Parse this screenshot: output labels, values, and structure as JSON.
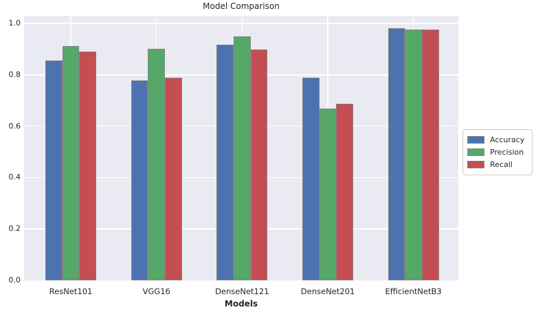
{
  "chart_data": {
    "type": "bar",
    "title": "Model Comparison",
    "xlabel": "Models",
    "ylabel": "",
    "categories": [
      "ResNet101",
      "VGG16",
      "DenseNet121",
      "DenseNet201",
      "EfficientNetB3"
    ],
    "series": [
      {
        "name": "Accuracy",
        "color": "#4c72b0",
        "values": [
          0.855,
          0.777,
          0.917,
          0.788,
          0.982
        ]
      },
      {
        "name": "Precision",
        "color": "#55a868",
        "values": [
          0.911,
          0.902,
          0.948,
          0.668,
          0.977
        ]
      },
      {
        "name": "Recall",
        "color": "#c44e52",
        "values": [
          0.89,
          0.788,
          0.899,
          0.686,
          0.977
        ]
      }
    ],
    "ylim": [
      0,
      1.0
    ],
    "yticks": [
      "0.0",
      "0.2",
      "0.4",
      "0.6",
      "0.8",
      "1.0"
    ],
    "grid": true,
    "legend_position": "center-right-outside",
    "plot_background": "#eaeaf2",
    "gridline_color": "#ffffff",
    "bar_edge_color": "#848484",
    "text_color": "#262626",
    "legend_border_color": "#cccccc"
  }
}
